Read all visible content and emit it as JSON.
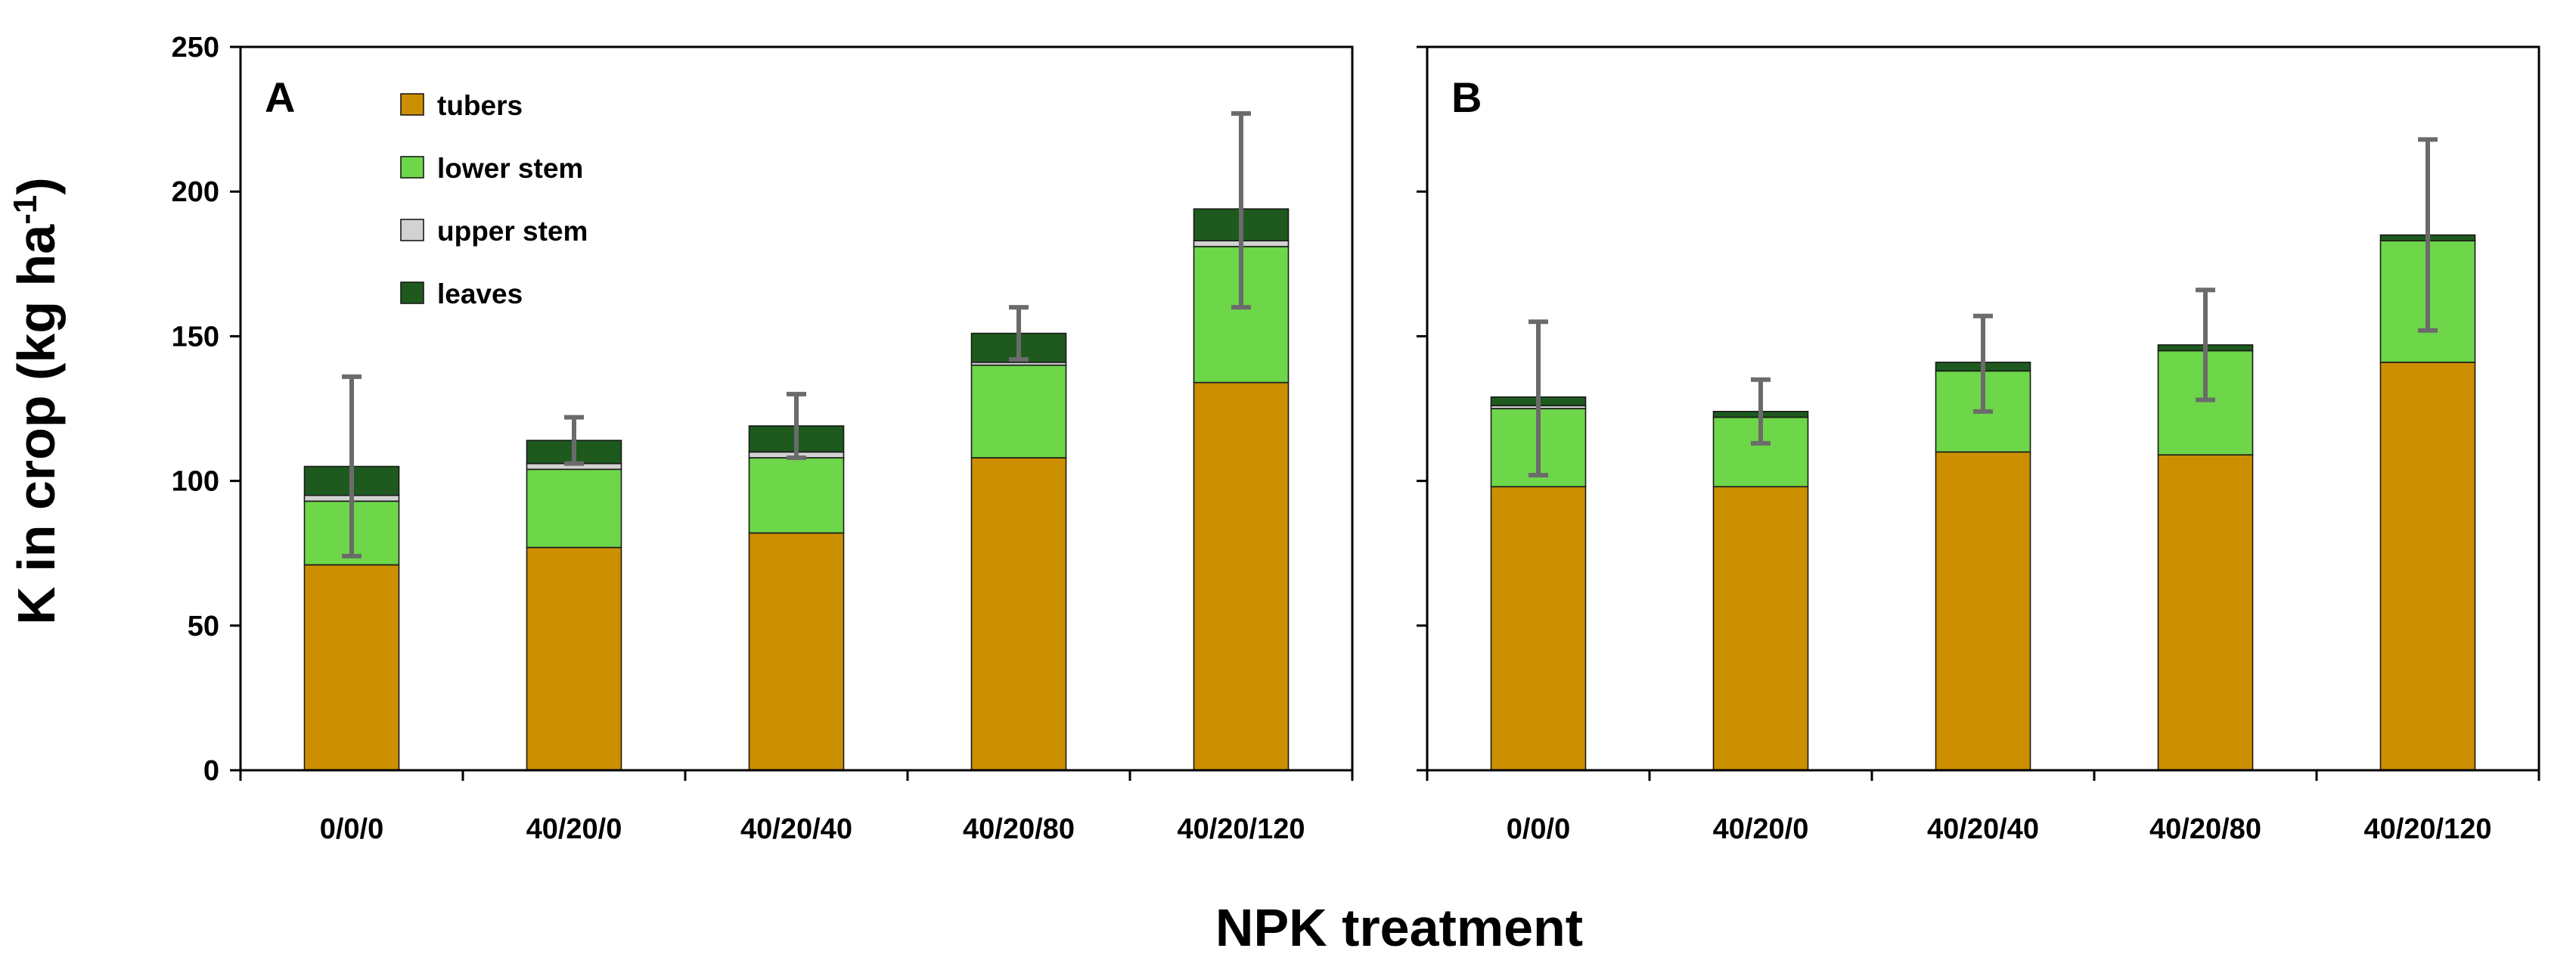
{
  "chart_data": {
    "type": "bar",
    "stacked": true,
    "ylabel": "K in crop (kg ha",
    "ylabel_sup": "-1",
    "ylabel_close": ")",
    "xlabel": "NPK treatment",
    "ylim": [
      0,
      250
    ],
    "yticks": [
      0,
      50,
      100,
      150,
      200,
      250
    ],
    "categories": [
      "0/0/0",
      "40/20/0",
      "40/20/40",
      "40/20/80",
      "40/20/120"
    ],
    "legend": [
      {
        "name": "tubers",
        "color": "#cc8f00"
      },
      {
        "name": "lower stem",
        "color": "#6dd649"
      },
      {
        "name": "upper stem",
        "color": "#d2d2d2"
      },
      {
        "name": "leaves",
        "color": "#1e5a1e"
      }
    ],
    "panels": [
      {
        "label": "A",
        "series": [
          {
            "name": "tubers",
            "values": [
              71,
              77,
              82,
              108,
              134
            ]
          },
          {
            "name": "lower stem",
            "values": [
              22,
              27,
              26,
              32,
              47
            ]
          },
          {
            "name": "upper stem",
            "values": [
              2,
              2,
              2,
              1,
              2
            ]
          },
          {
            "name": "leaves",
            "values": [
              10,
              8,
              9,
              10,
              11
            ]
          }
        ],
        "errors": [
          {
            "low": 74,
            "high": 136
          },
          {
            "low": 106,
            "high": 122
          },
          {
            "low": 108,
            "high": 130
          },
          {
            "low": 142,
            "high": 160
          },
          {
            "low": 160,
            "high": 227
          }
        ]
      },
      {
        "label": "B",
        "series": [
          {
            "name": "tubers",
            "values": [
              98,
              98,
              110,
              109,
              141
            ]
          },
          {
            "name": "lower stem",
            "values": [
              27,
              24,
              28,
              36,
              42
            ]
          },
          {
            "name": "upper stem",
            "values": [
              1,
              0,
              0,
              0,
              0
            ]
          },
          {
            "name": "leaves",
            "values": [
              3,
              2,
              3,
              2,
              2
            ]
          }
        ],
        "errors": [
          {
            "low": 102,
            "high": 155
          },
          {
            "low": 113,
            "high": 135
          },
          {
            "low": 124,
            "high": 157
          },
          {
            "low": 128,
            "high": 166
          },
          {
            "low": 152,
            "high": 218
          }
        ]
      }
    ]
  }
}
